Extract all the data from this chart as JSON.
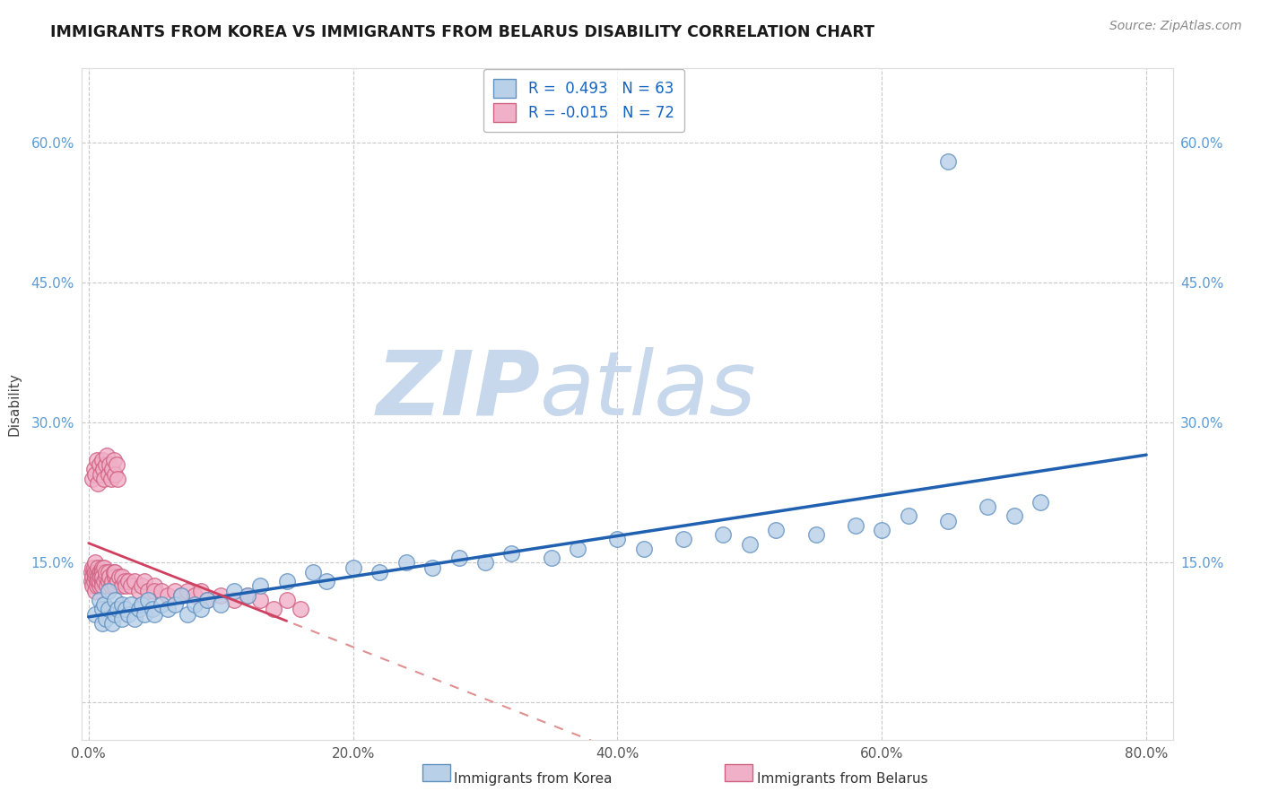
{
  "title": "IMMIGRANTS FROM KOREA VS IMMIGRANTS FROM BELARUS DISABILITY CORRELATION CHART",
  "source": "Source: ZipAtlas.com",
  "ylabel": "Disability",
  "xlim": [
    -0.005,
    0.82
  ],
  "ylim": [
    -0.04,
    0.68
  ],
  "ytick_vals": [
    0.0,
    0.15,
    0.3,
    0.45,
    0.6
  ],
  "ytick_labels_left": [
    "",
    "15.0%",
    "30.0%",
    "45.0%",
    "60.0%"
  ],
  "ytick_labels_right": [
    "",
    "15.0%",
    "30.0%",
    "45.0%",
    "60.0%"
  ],
  "xtick_vals": [
    0.0,
    0.2,
    0.4,
    0.6,
    0.8
  ],
  "xtick_labels": [
    "0.0%",
    "20.0%",
    "40.0%",
    "60.0%",
    "80.0%"
  ],
  "grid_color": "#c8c8c8",
  "korea_face_color": "#b8d0e8",
  "korea_edge_color": "#6090c0",
  "belarus_face_color": "#f0b0c8",
  "belarus_edge_color": "#d06080",
  "trendline_korea_color": "#2060b0",
  "trendline_belarus_solid_color": "#d04060",
  "trendline_belarus_dash_color": "#e09090",
  "korea_R": "0.493",
  "korea_N": "63",
  "belarus_R": "-0.015",
  "belarus_N": "72",
  "legend_label_korea": "Immigrants from Korea",
  "legend_label_belarus": "Immigrants from Belarus",
  "watermark_text": "ZIPatlas",
  "watermark_color": "#d8e8f4",
  "background_color": "#ffffff",
  "yaxis_tick_color": "#5b9bd5",
  "title_color": "#1a1a1a",
  "source_color": "#888888",
  "korea_x": [
    0.005,
    0.008,
    0.01,
    0.01,
    0.012,
    0.013,
    0.015,
    0.015,
    0.018,
    0.02,
    0.02,
    0.022,
    0.025,
    0.025,
    0.028,
    0.03,
    0.032,
    0.035,
    0.038,
    0.04,
    0.042,
    0.045,
    0.048,
    0.05,
    0.055,
    0.06,
    0.065,
    0.07,
    0.075,
    0.08,
    0.085,
    0.09,
    0.1,
    0.11,
    0.12,
    0.13,
    0.15,
    0.17,
    0.18,
    0.2,
    0.22,
    0.24,
    0.26,
    0.28,
    0.3,
    0.32,
    0.35,
    0.37,
    0.4,
    0.42,
    0.45,
    0.48,
    0.5,
    0.52,
    0.55,
    0.58,
    0.6,
    0.62,
    0.65,
    0.68,
    0.7,
    0.72,
    0.65
  ],
  "korea_y": [
    0.095,
    0.11,
    0.1,
    0.085,
    0.105,
    0.09,
    0.1,
    0.12,
    0.085,
    0.095,
    0.11,
    0.1,
    0.09,
    0.105,
    0.1,
    0.095,
    0.105,
    0.09,
    0.1,
    0.105,
    0.095,
    0.11,
    0.1,
    0.095,
    0.105,
    0.1,
    0.105,
    0.115,
    0.095,
    0.105,
    0.1,
    0.11,
    0.105,
    0.12,
    0.115,
    0.125,
    0.13,
    0.14,
    0.13,
    0.145,
    0.14,
    0.15,
    0.145,
    0.155,
    0.15,
    0.16,
    0.155,
    0.165,
    0.175,
    0.165,
    0.175,
    0.18,
    0.17,
    0.185,
    0.18,
    0.19,
    0.185,
    0.2,
    0.195,
    0.21,
    0.2,
    0.215,
    0.58
  ],
  "belarus_x": [
    0.002,
    0.002,
    0.003,
    0.003,
    0.003,
    0.004,
    0.004,
    0.004,
    0.005,
    0.005,
    0.005,
    0.005,
    0.006,
    0.006,
    0.006,
    0.007,
    0.007,
    0.007,
    0.008,
    0.008,
    0.008,
    0.009,
    0.009,
    0.01,
    0.01,
    0.01,
    0.01,
    0.01,
    0.012,
    0.012,
    0.013,
    0.013,
    0.014,
    0.015,
    0.015,
    0.016,
    0.017,
    0.018,
    0.019,
    0.02,
    0.02,
    0.02,
    0.022,
    0.023,
    0.025,
    0.025,
    0.027,
    0.028,
    0.03,
    0.032,
    0.035,
    0.038,
    0.04,
    0.042,
    0.045,
    0.05,
    0.05,
    0.055,
    0.06,
    0.065,
    0.07,
    0.075,
    0.08,
    0.085,
    0.09,
    0.1,
    0.11,
    0.12,
    0.13,
    0.14,
    0.15,
    0.16
  ],
  "belarus_y": [
    0.13,
    0.14,
    0.135,
    0.145,
    0.125,
    0.14,
    0.13,
    0.145,
    0.135,
    0.12,
    0.14,
    0.15,
    0.13,
    0.14,
    0.125,
    0.135,
    0.145,
    0.13,
    0.14,
    0.125,
    0.13,
    0.14,
    0.135,
    0.145,
    0.13,
    0.125,
    0.14,
    0.135,
    0.145,
    0.13,
    0.135,
    0.14,
    0.125,
    0.13,
    0.14,
    0.135,
    0.125,
    0.13,
    0.14,
    0.135,
    0.14,
    0.125,
    0.13,
    0.135,
    0.125,
    0.135,
    0.13,
    0.125,
    0.13,
    0.125,
    0.13,
    0.12,
    0.125,
    0.13,
    0.12,
    0.125,
    0.12,
    0.12,
    0.115,
    0.12,
    0.115,
    0.12,
    0.115,
    0.12,
    0.11,
    0.115,
    0.11,
    0.115,
    0.11,
    0.1,
    0.11,
    0.1
  ],
  "belarus_y_high": [
    0.24,
    0.25,
    0.245,
    0.26,
    0.235,
    0.255,
    0.245,
    0.26,
    0.25,
    0.24,
    0.255,
    0.265,
    0.245,
    0.255,
    0.24,
    0.25,
    0.26,
    0.245,
    0.255,
    0.24
  ],
  "belarus_x_high": [
    0.003,
    0.004,
    0.005,
    0.006,
    0.007,
    0.008,
    0.009,
    0.01,
    0.011,
    0.012,
    0.013,
    0.014,
    0.015,
    0.016,
    0.017,
    0.018,
    0.019,
    0.02,
    0.021,
    0.022
  ]
}
